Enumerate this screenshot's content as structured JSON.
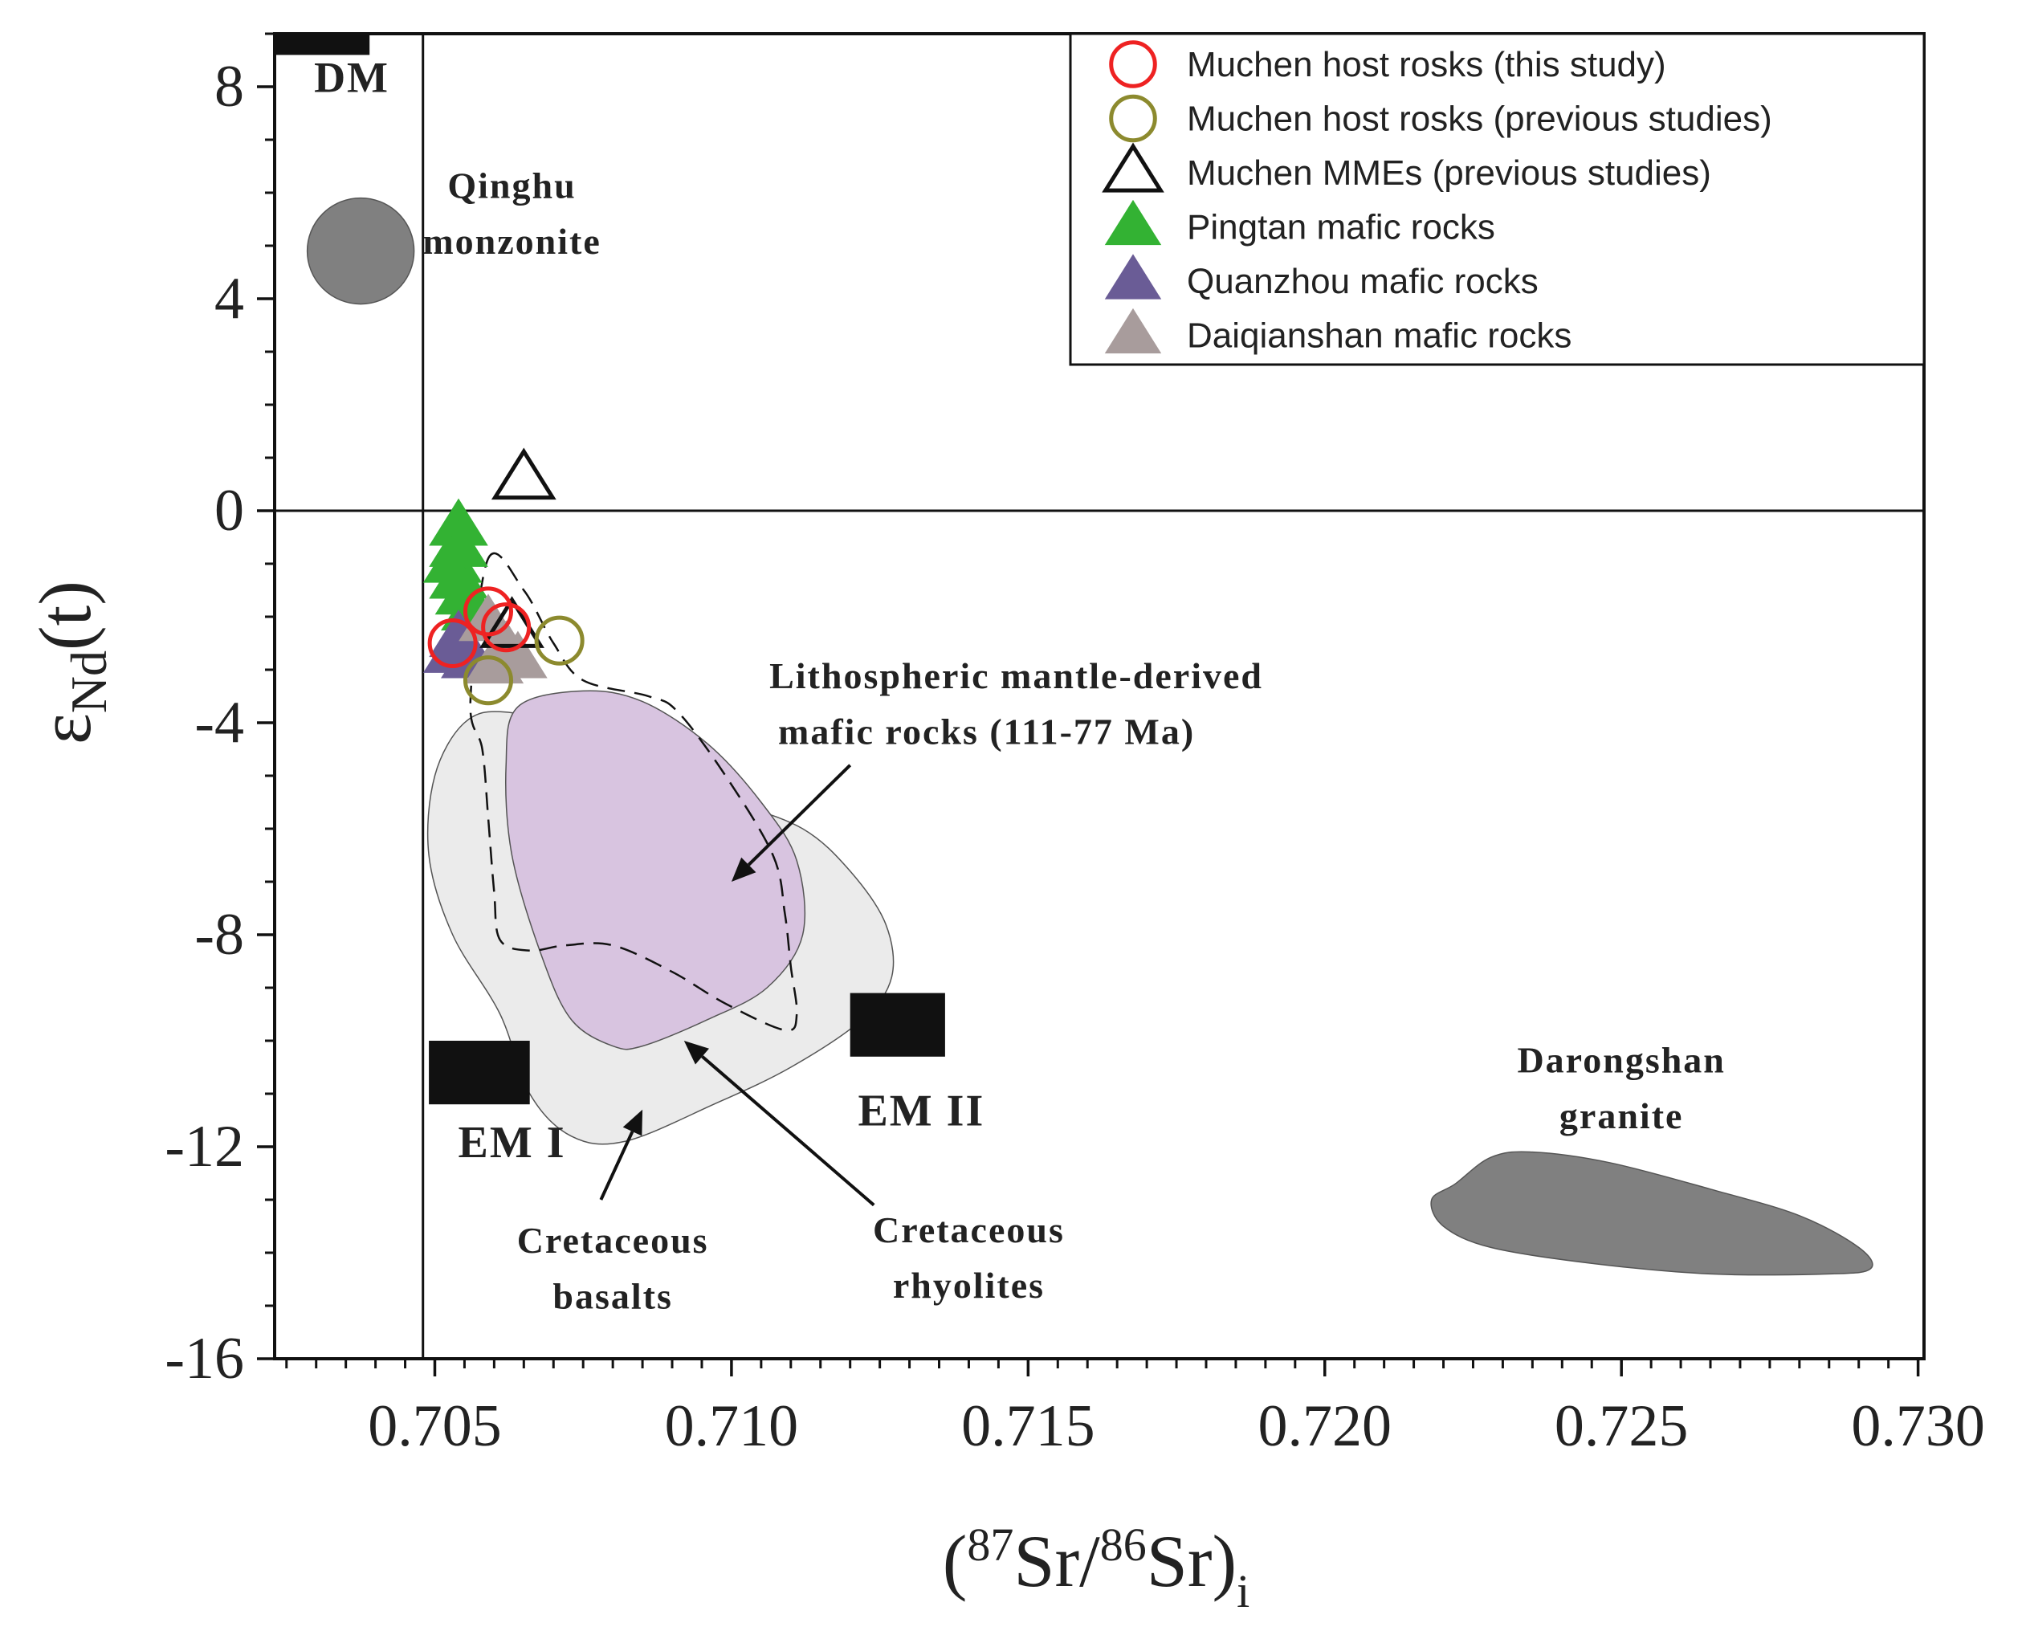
{
  "chart_data": {
    "type": "scatter",
    "xlabel": {
      "open": "(",
      "sup1": "87",
      "mid": "Sr/",
      "sup2": "86",
      "tail": "Sr)",
      "sub": "i"
    },
    "ylabel": {
      "base": "ε",
      "sub": "Nd",
      "tail": "(t)"
    },
    "xlim": [
      0.7023,
      0.7301
    ],
    "ylim": [
      -16,
      9
    ],
    "x_ticks": [
      0.705,
      0.71,
      0.715,
      0.72,
      0.725,
      0.73
    ],
    "x_tick_labels": [
      "0.705",
      "0.710",
      "0.715",
      "0.720",
      "0.725",
      "0.730"
    ],
    "y_ticks": [
      8,
      4,
      0,
      -4,
      -8,
      -12,
      -16
    ],
    "y_tick_labels": [
      "8",
      "4",
      "0",
      "-4",
      "-8",
      "-12",
      "-16"
    ],
    "reference_lines": {
      "x": 0.7048,
      "y": 0
    },
    "legend": {
      "position": "top-right",
      "items": [
        {
          "label": "Muchen host rosks (this study)",
          "marker": "circle-open",
          "color": "#ee2222"
        },
        {
          "label": "Muchen host rosks (previous studies)",
          "marker": "circle-open",
          "color": "#8c8a2e"
        },
        {
          "label": "Muchen MMEs (previous studies)",
          "marker": "triangle-open",
          "color": "#111111"
        },
        {
          "label": "Pingtan mafic rocks",
          "marker": "triangle-filled",
          "color": "#33b233"
        },
        {
          "label": "Quanzhou mafic rocks",
          "marker": "triangle-filled",
          "color": "#6a5c96"
        },
        {
          "label": "Daiqianshan mafic rocks",
          "marker": "triangle-filled",
          "color": "#a89c9c"
        }
      ]
    },
    "series": [
      {
        "name": "Pingtan mafic rocks",
        "marker": "triangle-filled",
        "color": "#33b233",
        "points": [
          [
            0.7054,
            -0.3
          ],
          [
            0.7054,
            -0.7
          ],
          [
            0.7053,
            -1.0
          ],
          [
            0.7054,
            -1.3
          ],
          [
            0.7055,
            -1.6
          ],
          [
            0.7056,
            -1.9
          ]
        ]
      },
      {
        "name": "Quanzhou mafic rocks",
        "marker": "triangle-filled",
        "color": "#6a5c96",
        "points": [
          [
            0.7053,
            -2.7
          ],
          [
            0.7056,
            -2.8
          ],
          [
            0.7054,
            -2.4
          ]
        ]
      },
      {
        "name": "Daiqianshan mafic rocks",
        "marker": "triangle-filled",
        "color": "#a89c9c",
        "points": [
          [
            0.7059,
            -2.1
          ],
          [
            0.7062,
            -2.6
          ],
          [
            0.706,
            -2.9
          ],
          [
            0.7064,
            -2.8
          ]
        ]
      },
      {
        "name": "Muchen MMEs (previous studies)",
        "marker": "triangle-open",
        "color": "#111111",
        "points": [
          [
            0.7065,
            0.6
          ],
          [
            0.7063,
            -2.2
          ]
        ]
      },
      {
        "name": "Muchen host rosks (this study)",
        "marker": "circle-open",
        "color": "#ee2222",
        "points": [
          [
            0.7053,
            -2.5
          ],
          [
            0.7059,
            -1.9
          ],
          [
            0.7062,
            -2.2
          ]
        ]
      },
      {
        "name": "Muchen host rosks (previous studies)",
        "marker": "circle-open",
        "color": "#8c8a2e",
        "points": [
          [
            0.7071,
            -2.45
          ],
          [
            0.7059,
            -3.2
          ]
        ]
      }
    ],
    "fields": [
      {
        "label": "Qinghu monzonite",
        "type": "ellipse",
        "color": "#808080",
        "center": [
          0.70375,
          4.9
        ],
        "radii": [
          0.0009,
          1.0
        ]
      },
      {
        "label": "Darongshan granite",
        "type": "polygon",
        "color": "#808080",
        "points": [
          [
            0.7222,
            -12.7
          ],
          [
            0.7228,
            -12.2
          ],
          [
            0.7235,
            -12.1
          ],
          [
            0.7248,
            -12.3
          ],
          [
            0.7265,
            -12.8
          ],
          [
            0.728,
            -13.3
          ],
          [
            0.729,
            -13.9
          ],
          [
            0.7292,
            -14.3
          ],
          [
            0.7285,
            -14.4
          ],
          [
            0.7265,
            -14.4
          ],
          [
            0.7245,
            -14.2
          ],
          [
            0.7228,
            -13.9
          ],
          [
            0.722,
            -13.5
          ],
          [
            0.7218,
            -13.0
          ]
        ]
      },
      {
        "label": "Cretaceous basalts",
        "type": "polygon",
        "color": "#ebebeb",
        "points": [
          [
            0.7055,
            -4.0
          ],
          [
            0.7062,
            -3.8
          ],
          [
            0.7075,
            -4.2
          ],
          [
            0.7085,
            -5.0
          ],
          [
            0.71,
            -5.5
          ],
          [
            0.7112,
            -6.0
          ],
          [
            0.712,
            -6.8
          ],
          [
            0.7126,
            -7.8
          ],
          [
            0.7127,
            -8.8
          ],
          [
            0.7122,
            -9.6
          ],
          [
            0.711,
            -10.5
          ],
          [
            0.7097,
            -11.2
          ],
          [
            0.7082,
            -11.9
          ],
          [
            0.7073,
            -11.8
          ],
          [
            0.7066,
            -11.0
          ],
          [
            0.7061,
            -9.5
          ],
          [
            0.7053,
            -8.0
          ],
          [
            0.7049,
            -6.5
          ],
          [
            0.705,
            -5.0
          ]
        ]
      },
      {
        "label": "Lithospheric mantle-derived mafic rocks (111-77 Ma)",
        "type": "polygon",
        "color": "#d8c4e0",
        "points": [
          [
            0.7064,
            -3.7
          ],
          [
            0.7075,
            -3.4
          ],
          [
            0.7085,
            -3.6
          ],
          [
            0.7096,
            -4.4
          ],
          [
            0.7105,
            -5.5
          ],
          [
            0.7111,
            -6.6
          ],
          [
            0.7112,
            -8.0
          ],
          [
            0.7106,
            -9.0
          ],
          [
            0.7096,
            -9.6
          ],
          [
            0.7085,
            -10.1
          ],
          [
            0.708,
            -10.1
          ],
          [
            0.7073,
            -9.6
          ],
          [
            0.7068,
            -8.4
          ],
          [
            0.7063,
            -6.5
          ],
          [
            0.7062,
            -4.8
          ]
        ]
      }
    ],
    "dashed_fields": [
      {
        "label": "Cretaceous rhyolites",
        "points": [
          [
            0.7059,
            -0.9
          ],
          [
            0.7065,
            -1.5
          ],
          [
            0.707,
            -2.5
          ],
          [
            0.7075,
            -3.2
          ],
          [
            0.7086,
            -3.5
          ],
          [
            0.7091,
            -3.8
          ],
          [
            0.7099,
            -5.0
          ],
          [
            0.7107,
            -6.5
          ],
          [
            0.7109,
            -7.6
          ],
          [
            0.711,
            -8.6
          ],
          [
            0.7111,
            -9.5
          ],
          [
            0.7109,
            -9.8
          ],
          [
            0.7099,
            -9.3
          ],
          [
            0.709,
            -8.7
          ],
          [
            0.708,
            -8.2
          ],
          [
            0.7072,
            -8.2
          ],
          [
            0.7066,
            -8.3
          ],
          [
            0.7061,
            -8.1
          ],
          [
            0.706,
            -7.2
          ],
          [
            0.7059,
            -5.8
          ],
          [
            0.7058,
            -4.5
          ],
          [
            0.7056,
            -3.6
          ]
        ]
      }
    ],
    "end_members": [
      {
        "label": "DM",
        "rect": [
          [
            0.7023,
            8.6
          ],
          [
            0.7039,
            9.2
          ]
        ]
      },
      {
        "label": "EM I",
        "rect": [
          [
            0.7049,
            -10.0
          ],
          [
            0.7066,
            -11.2
          ]
        ]
      },
      {
        "label": "EM II",
        "rect": [
          [
            0.712,
            -9.1
          ],
          [
            0.7136,
            -10.3
          ]
        ]
      }
    ],
    "labels": [
      {
        "text": "DM",
        "at": [
          0.7036,
          7.9
        ],
        "size": 54,
        "anchor": "middle"
      },
      {
        "text": "Qinghu",
        "at": [
          0.7063,
          5.9
        ],
        "size": 46,
        "anchor": "middle"
      },
      {
        "text": "monzonite",
        "at": [
          0.7063,
          4.85
        ],
        "size": 46,
        "anchor": "middle"
      },
      {
        "text": "Lithospheric mantle-derived",
        "at": [
          0.7148,
          -3.35
        ],
        "size": 46,
        "anchor": "middle"
      },
      {
        "text": "mafic rocks (111-77 Ma)",
        "at": [
          0.7143,
          -4.4
        ],
        "size": 46,
        "anchor": "middle"
      },
      {
        "text": "EM I",
        "at": [
          0.7063,
          -12.2
        ],
        "size": 56,
        "anchor": "middle"
      },
      {
        "text": "EM II",
        "at": [
          0.7132,
          -11.6
        ],
        "size": 56,
        "anchor": "middle"
      },
      {
        "text": "Darongshan",
        "at": [
          0.725,
          -10.6
        ],
        "size": 46,
        "anchor": "middle"
      },
      {
        "text": "granite",
        "at": [
          0.725,
          -11.65
        ],
        "size": 46,
        "anchor": "middle"
      },
      {
        "text": "Cretaceous",
        "at": [
          0.708,
          -14.0
        ],
        "size": 46,
        "anchor": "middle"
      },
      {
        "text": "basalts",
        "at": [
          0.708,
          -15.05
        ],
        "size": 46,
        "anchor": "middle"
      },
      {
        "text": "Cretaceous",
        "at": [
          0.714,
          -13.8
        ],
        "size": 46,
        "anchor": "middle"
      },
      {
        "text": "rhyolites",
        "at": [
          0.714,
          -14.85
        ],
        "size": 46,
        "anchor": "middle"
      }
    ],
    "arrows": [
      {
        "to_field": "Lithospheric mantle-derived mafic rocks (111-77 Ma)",
        "from": [
          0.712,
          -4.8
        ],
        "to": [
          0.71,
          -7.0
        ]
      },
      {
        "to_field": "Cretaceous basalts",
        "from": [
          0.7078,
          -13.0
        ],
        "to": [
          0.7085,
          -11.3
        ]
      },
      {
        "to_field": "Cretaceous rhyolites",
        "from": [
          0.7124,
          -13.1
        ],
        "to": [
          0.7092,
          -10.0
        ]
      }
    ]
  }
}
